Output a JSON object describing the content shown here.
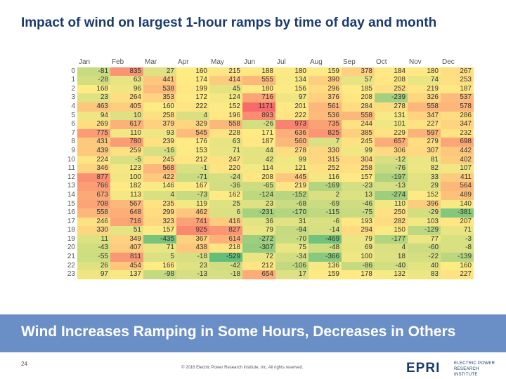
{
  "title": "Impact of wind on largest 1-hour ramps by time of day and month",
  "banner": "Wind Increases Ramping in Some Hours, Decreases in Others",
  "page_number": "24",
  "copyright": "© 2016 Electric Power Research Institute, Inc. All rights reserved.",
  "logo": {
    "mark": "EPRI",
    "line1": "ELECTRIC POWER",
    "line2": "RESEARCH INSTITUTE"
  },
  "colors": {
    "high": "#f8696b",
    "mid": "#ffeb84",
    "low": "#63be7b"
  },
  "chart_data": {
    "type": "heatmap",
    "columns": [
      "Jan",
      "Feb",
      "Mar",
      "Apr",
      "May",
      "Jun",
      "Jul",
      "Aug",
      "Sep",
      "Oct",
      "Nov",
      "Dec"
    ],
    "rows": [
      "0",
      "1",
      "2",
      "3",
      "4",
      "5",
      "6",
      "7",
      "8",
      "9",
      "10",
      "11",
      "12",
      "13",
      "14",
      "15",
      "16",
      "17",
      "18",
      "19",
      "20",
      "21",
      "22",
      "23"
    ],
    "values": [
      [
        -81,
        835,
        27,
        160,
        215,
        188,
        180,
        159,
        378,
        184,
        180,
        267
      ],
      [
        -28,
        63,
        441,
        174,
        414,
        555,
        134,
        390,
        57,
        208,
        74,
        253
      ],
      [
        168,
        96,
        538,
        199,
        45,
        180,
        156,
        296,
        185,
        252,
        219,
        187
      ],
      [
        23,
        264,
        353,
        172,
        124,
        716,
        97,
        376,
        208,
        -239,
        326,
        537
      ],
      [
        463,
        405,
        160,
        222,
        152,
        1171,
        201,
        561,
        284,
        278,
        558,
        578
      ],
      [
        94,
        10,
        258,
        4,
        196,
        893,
        222,
        536,
        558,
        131,
        347,
        286
      ],
      [
        269,
        617,
        379,
        329,
        558,
        -26,
        973,
        735,
        244,
        101,
        227,
        347
      ],
      [
        775,
        110,
        93,
        545,
        228,
        171,
        636,
        825,
        385,
        229,
        597,
        232
      ],
      [
        431,
        780,
        239,
        176,
        63,
        187,
        560,
        7,
        245,
        657,
        279,
        698
      ],
      [
        439,
        259,
        -16,
        153,
        71,
        44,
        278,
        330,
        99,
        306,
        307,
        442
      ],
      [
        224,
        -5,
        245,
        212,
        247,
        42,
        99,
        315,
        304,
        -12,
        81,
        402
      ],
      [
        346,
        123,
        568,
        -1,
        220,
        114,
        121,
        252,
        258,
        -76,
        82,
        107
      ],
      [
        877,
        100,
        422,
        -71,
        -24,
        208,
        445,
        116,
        157,
        -197,
        33,
        411
      ],
      [
        766,
        182,
        146,
        167,
        -36,
        -65,
        219,
        -169,
        -23,
        -13,
        29,
        564
      ],
      [
        673,
        113,
        4,
        -73,
        162,
        -124,
        -152,
        2,
        13,
        -274,
        152,
        489
      ],
      [
        708,
        567,
        235,
        119,
        25,
        23,
        -68,
        -69,
        -46,
        110,
        396,
        140
      ],
      [
        558,
        648,
        299,
        462,
        6,
        -231,
        -170,
        -115,
        -75,
        250,
        -29,
        -381
      ],
      [
        246,
        716,
        323,
        741,
        416,
        36,
        31,
        -6,
        193,
        282,
        103,
        207
      ],
      [
        330,
        51,
        157,
        925,
        827,
        79,
        -94,
        -14,
        294,
        150,
        -129,
        71
      ],
      [
        11,
        349,
        -435,
        367,
        614,
        -272,
        -70,
        -469,
        79,
        -177,
        77,
        -3
      ],
      [
        -43,
        407,
        71,
        438,
        218,
        -307,
        75,
        -48,
        69,
        4,
        -60,
        -8
      ],
      [
        -55,
        811,
        5,
        -18,
        -529,
        72,
        -34,
        -366,
        100,
        18,
        -22,
        -139
      ],
      [
        26,
        454,
        166,
        23,
        -42,
        212,
        -106,
        136,
        -86,
        -40,
        40,
        160
      ],
      [
        97,
        137,
        -98,
        -13,
        -18,
        654,
        17,
        159,
        178,
        132,
        83,
        227
      ]
    ],
    "color_scale": {
      "min": -529,
      "max": 1171
    }
  }
}
